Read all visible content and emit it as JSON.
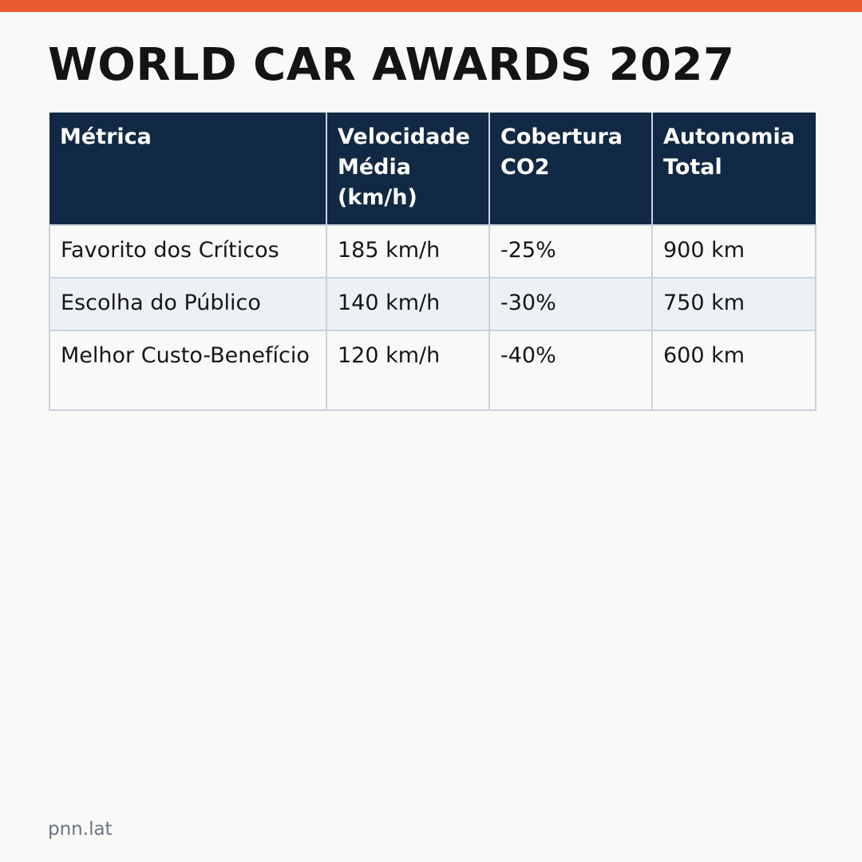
{
  "title": "WORLD CAR AWARDS 2027",
  "accent_color": "#e85c30",
  "header_color": "#112944",
  "table": {
    "headers": [
      "Métrica",
      "Velocidade Média (km/h)",
      "Cobertura CO2",
      "Autonomia Total"
    ],
    "rows": [
      [
        "Favorito dos Críticos",
        "185 km/h",
        "-25%",
        "900 km"
      ],
      [
        "Escolha do Público",
        "140 km/h",
        "-30%",
        "750 km"
      ],
      [
        "Melhor Custo-Benefício",
        "120 km/h",
        "-40%",
        "600 km"
      ]
    ]
  },
  "footer": {
    "source": "pnn.lat"
  }
}
